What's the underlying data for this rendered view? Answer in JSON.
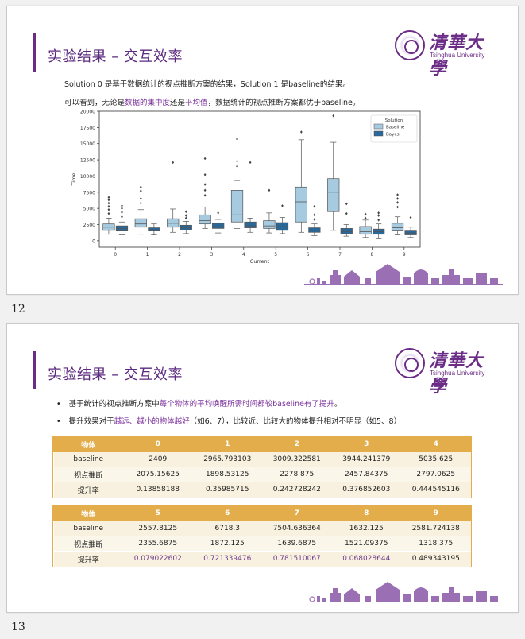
{
  "slide1": {
    "title": "实验结果 – 交互效率",
    "logo_zh": "清華大學",
    "logo_en": "Tsinghua University",
    "line1": "Solution 0 是基于数据统计的视点推断方案的结果，Solution 1 是baseline的结果。",
    "line2_pre": "可以看到，无论是",
    "line2_hl1": "数据的集中度",
    "line2_mid": "还是",
    "line2_hl2": "平均值",
    "line2_post": "，数据统计的视点推断方案都优于baseline。",
    "page_number": "12"
  },
  "chart_data": {
    "type": "box",
    "title": "",
    "xlabel": "Current",
    "ylabel": "Time",
    "ylim": [
      -1000,
      20000
    ],
    "yticks": [
      0,
      2500,
      5000,
      7500,
      10000,
      12500,
      15000,
      17500,
      20000
    ],
    "categories": [
      "0",
      "1",
      "2",
      "3",
      "4",
      "5",
      "6",
      "7",
      "8",
      "9"
    ],
    "legend_title": "Solution",
    "legend_position": "top-right",
    "series": [
      {
        "name": "Baseline",
        "color": "#a6cadf",
        "boxes": [
          {
            "q1": 1600,
            "median": 2100,
            "q3": 2600,
            "lo": 1000,
            "hi": 3500,
            "outliers": [
              4200,
              4800,
              5300,
              5800,
              6300,
              6700
            ]
          },
          {
            "q1": 2100,
            "median": 2600,
            "q3": 3400,
            "lo": 1000,
            "hi": 4800,
            "outliers": [
              5800,
              6500,
              7700,
              8300
            ]
          },
          {
            "q1": 2100,
            "median": 2700,
            "q3": 3400,
            "lo": 1300,
            "hi": 4900,
            "outliers": [
              12100
            ]
          },
          {
            "q1": 2600,
            "median": 3100,
            "q3": 4000,
            "lo": 1900,
            "hi": 5200,
            "outliers": [
              7000,
              7800,
              8700,
              10200,
              12700
            ]
          },
          {
            "q1": 2900,
            "median": 4000,
            "q3": 7800,
            "lo": 1900,
            "hi": 9300,
            "outliers": [
              11500,
              12300,
              15700
            ]
          },
          {
            "q1": 1900,
            "median": 2300,
            "q3": 3100,
            "lo": 1200,
            "hi": 4300,
            "outliers": [
              7800
            ]
          },
          {
            "q1": 2900,
            "median": 6000,
            "q3": 8300,
            "lo": 1300,
            "hi": 15600,
            "outliers": [
              16800
            ]
          },
          {
            "q1": 4500,
            "median": 7500,
            "q3": 9600,
            "lo": 1600,
            "hi": 15200,
            "outliers": [
              19300
            ]
          },
          {
            "q1": 1000,
            "median": 1400,
            "q3": 2200,
            "lo": 500,
            "hi": 3200,
            "outliers": [
              3500,
              4100
            ]
          },
          {
            "q1": 1500,
            "median": 2000,
            "q3": 2700,
            "lo": 900,
            "hi": 3700,
            "outliers": [
              5200,
              5900,
              6500,
              7100
            ]
          }
        ]
      },
      {
        "name": "Bayes",
        "color": "#28689a",
        "boxes": [
          {
            "q1": 1500,
            "median": 1900,
            "q3": 2300,
            "lo": 900,
            "hi": 2900,
            "outliers": [
              3700,
              4400,
              5000,
              5400
            ]
          },
          {
            "q1": 1500,
            "median": 1700,
            "q3": 2000,
            "lo": 900,
            "hi": 2600,
            "outliers": []
          },
          {
            "q1": 1700,
            "median": 2000,
            "q3": 2400,
            "lo": 1100,
            "hi": 3000,
            "outliers": [
              3500,
              3900,
              4500
            ]
          },
          {
            "q1": 1900,
            "median": 2200,
            "q3": 2700,
            "lo": 1200,
            "hi": 3300,
            "outliers": [
              4300
            ]
          },
          {
            "q1": 2000,
            "median": 2300,
            "q3": 2900,
            "lo": 1300,
            "hi": 3500,
            "outliers": [
              12100
            ]
          },
          {
            "q1": 1600,
            "median": 2200,
            "q3": 2800,
            "lo": 1100,
            "hi": 3600,
            "outliers": [
              5400
            ]
          },
          {
            "q1": 1300,
            "median": 1600,
            "q3": 2000,
            "lo": 800,
            "hi": 2600,
            "outliers": [
              3300,
              4000,
              5300
            ]
          },
          {
            "q1": 1100,
            "median": 1400,
            "q3": 1900,
            "lo": 700,
            "hi": 2500,
            "outliers": [
              4200,
              5700
            ]
          },
          {
            "q1": 1000,
            "median": 1400,
            "q3": 1800,
            "lo": 300,
            "hi": 2600,
            "outliers": [
              3200,
              3900,
              4300
            ]
          },
          {
            "q1": 900,
            "median": 1200,
            "q3": 1500,
            "lo": 500,
            "hi": 2100,
            "outliers": [
              3600
            ]
          }
        ]
      }
    ]
  },
  "slide2": {
    "title": "实验结果 – 交互效率",
    "logo_zh": "清華大學",
    "logo_en": "Tsinghua University",
    "bullet1_pre": "基于统计的视点推断方案中",
    "bullet1_hl": "每个物体的平均唤醒所需时间都较baseline有了提升",
    "bullet1_post": "。",
    "bullet2_pre": "提升效果对于",
    "bullet2_hl": "越远、越小的物体越好",
    "bullet2_post": "（如6、7），比较近、比较大的物体提升相对不明显（如5、8）",
    "page_number": "13",
    "table1": {
      "header": [
        "物体",
        "0",
        "1",
        "2",
        "3",
        "4"
      ],
      "rows": [
        [
          "baseline",
          "2409",
          "2965.793103",
          "3009.322581",
          "3944.241379",
          "5035.625"
        ],
        [
          "视点推断",
          "2075.15625",
          "1898.53125",
          "2278.875",
          "2457.84375",
          "2797.0625"
        ],
        [
          "提升率",
          "0.13858188",
          "0.35985715",
          "0.242728242",
          "0.376852603",
          "0.444545116"
        ]
      ]
    },
    "table2": {
      "header": [
        "物体",
        "5",
        "6",
        "7",
        "8",
        "9"
      ],
      "rows": [
        [
          "baseline",
          "2557.8125",
          "6718.3",
          "7504.636364",
          "1632.125",
          "2581.724138"
        ],
        [
          "视点推断",
          "2355.6875",
          "1872.125",
          "1639.6875",
          "1521.09375",
          "1318.375"
        ],
        [
          "提升率",
          "0.079022602",
          "0.721339476",
          "0.781510067",
          "0.068028644",
          "0.489343195"
        ]
      ]
    }
  }
}
